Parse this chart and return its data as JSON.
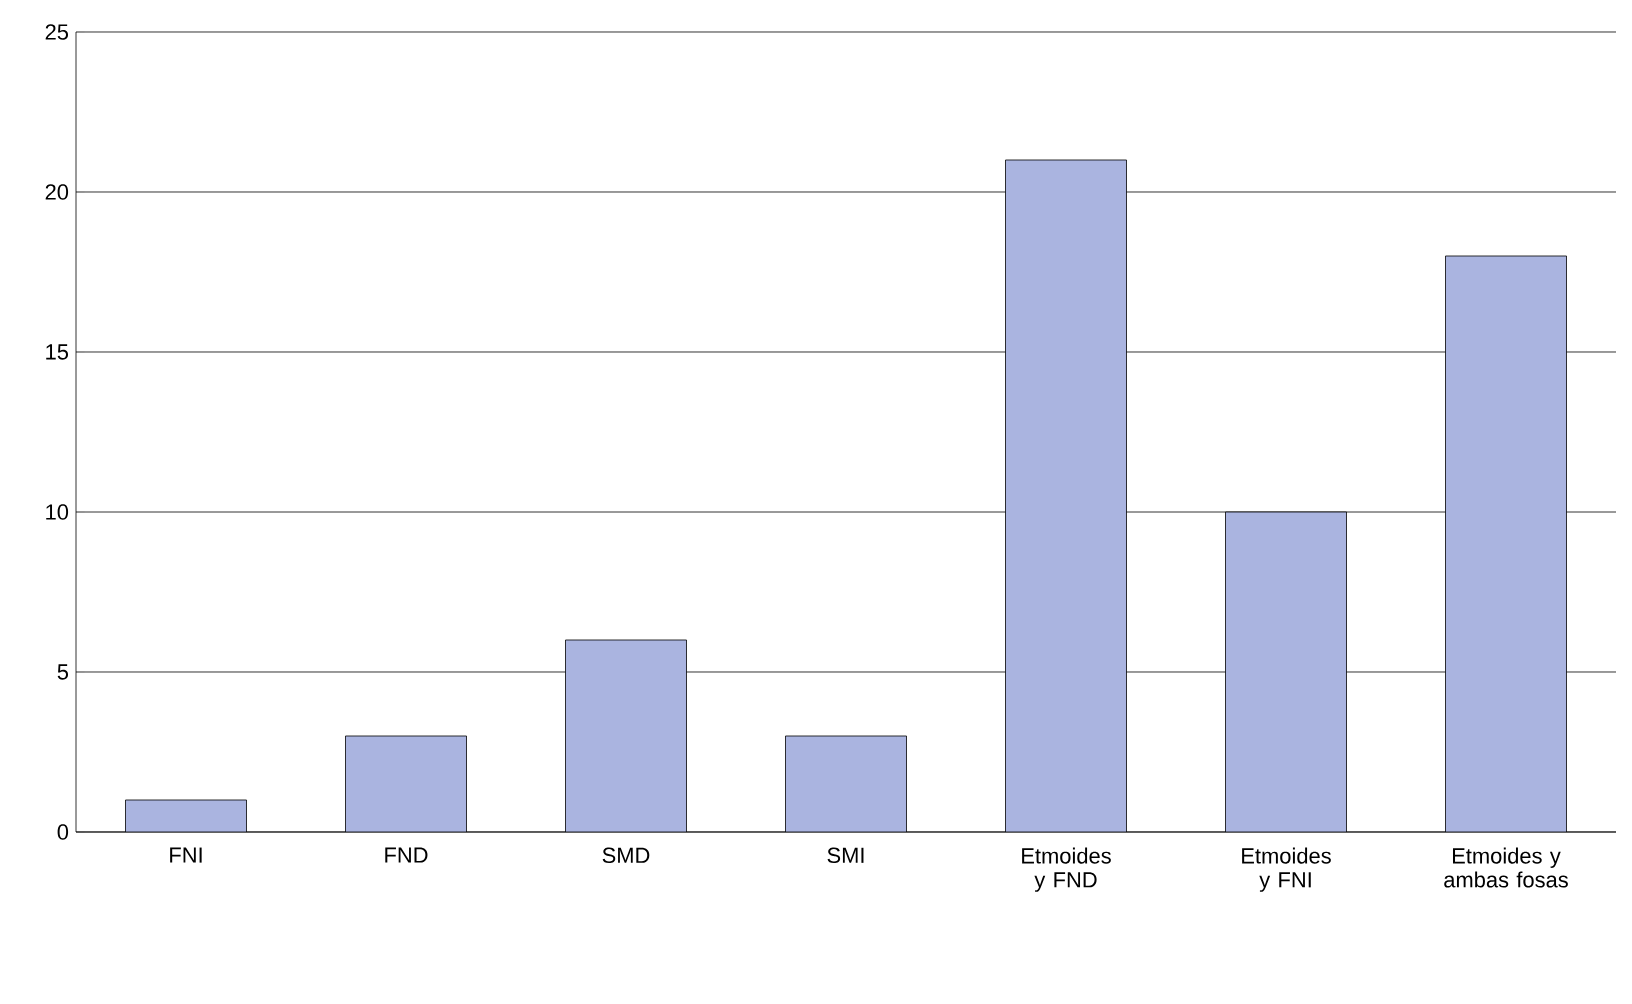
{
  "chart_data": {
    "type": "bar",
    "categories": [
      "FNI",
      "FND",
      "SMD",
      "SMI",
      "Etmoides y FND",
      "Etmoides y FNI",
      "Etmoides y ambas fosas"
    ],
    "values": [
      1,
      3,
      6,
      3,
      21,
      10,
      18
    ],
    "color": "#aab4e0",
    "ylim": [
      0,
      25
    ],
    "yticks": [
      0,
      5,
      10,
      15,
      20,
      25
    ],
    "grid": "y"
  }
}
